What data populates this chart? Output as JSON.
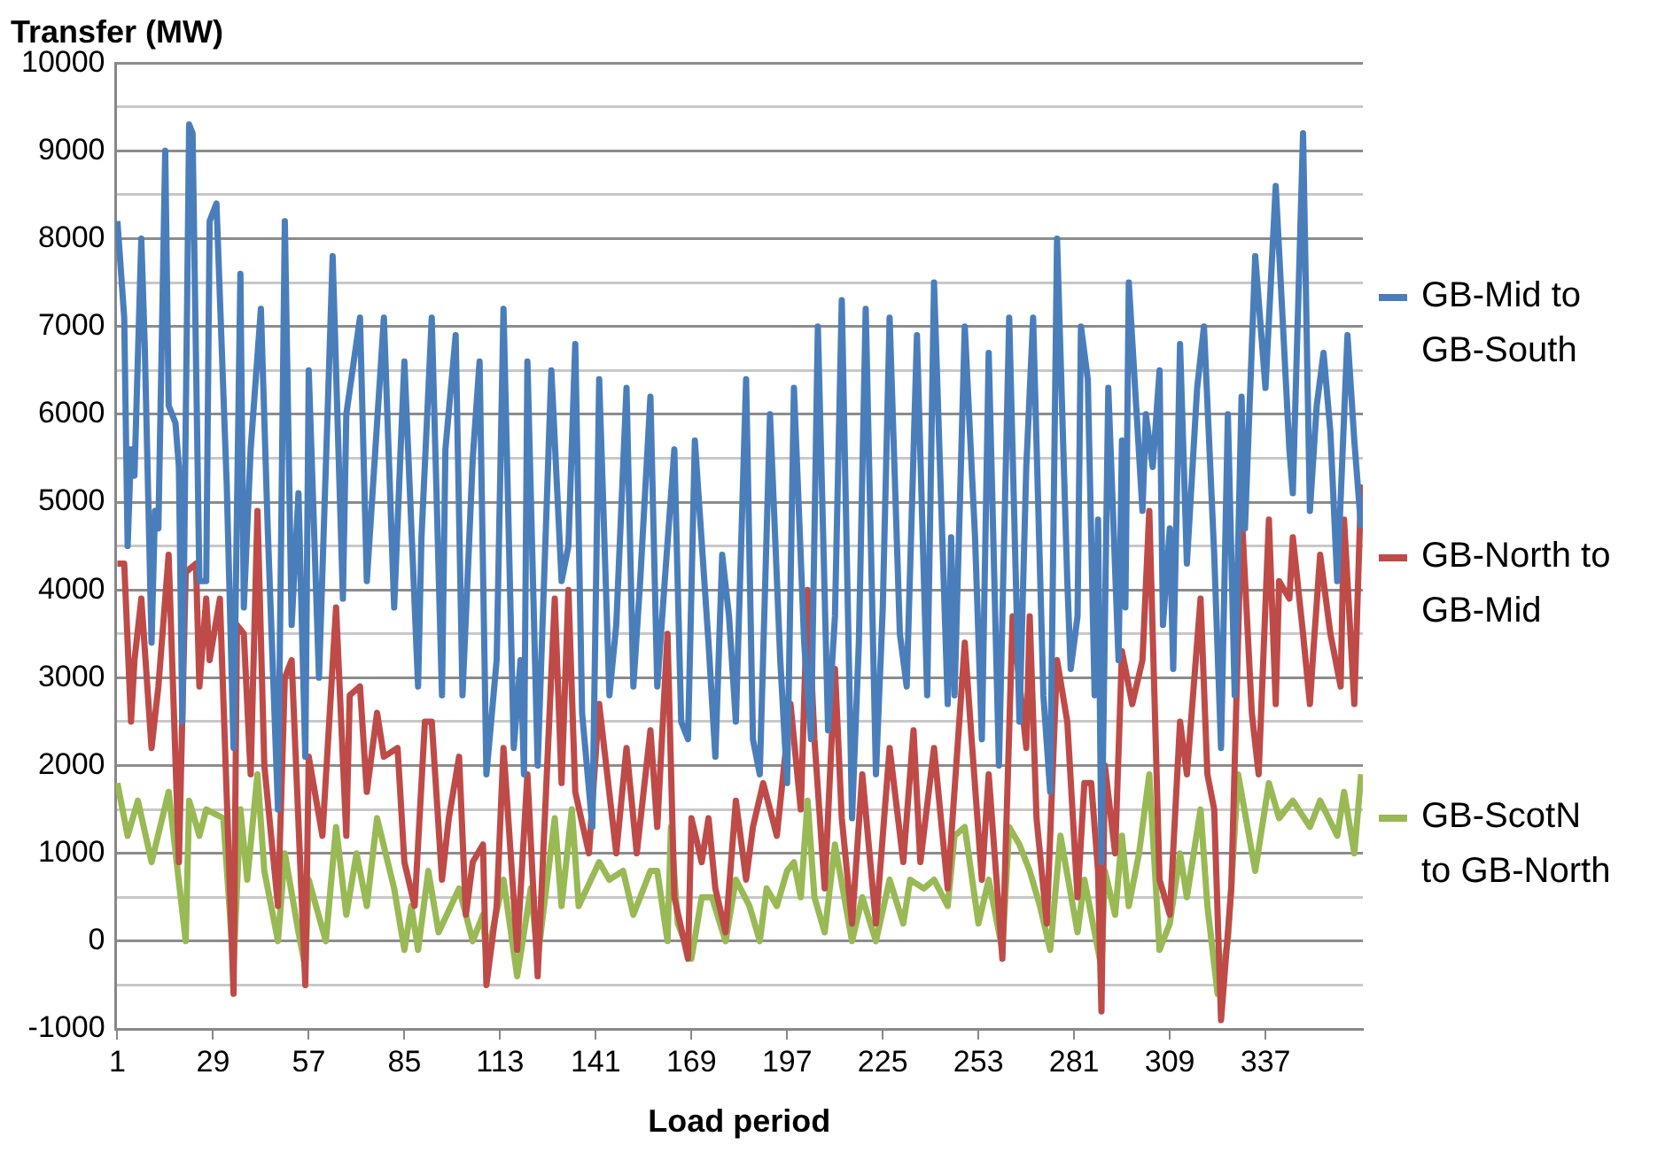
{
  "chart_data": {
    "type": "line",
    "ylabel": "Transfer (MW)",
    "xlabel": "Load period",
    "xlim": [
      0.5,
      365.5
    ],
    "xticks": [
      1,
      29,
      57,
      85,
      113,
      141,
      169,
      197,
      225,
      253,
      281,
      309,
      337
    ],
    "ylim": [
      -1000,
      10000
    ],
    "yticks": [
      -1000,
      {
        "value": -500,
        "label": null
      },
      0,
      {
        "value": 500,
        "label": null
      },
      1000,
      {
        "value": 1500,
        "label": null
      },
      2000,
      {
        "value": 2500,
        "label": null
      },
      3000,
      {
        "value": 3500,
        "label": null
      },
      4000,
      {
        "value": 4500,
        "label": null
      },
      5000,
      {
        "value": 5500,
        "label": null
      },
      6000,
      {
        "value": 6500,
        "label": null
      },
      7000,
      {
        "value": 7500,
        "label": null
      },
      8000,
      {
        "value": 8500,
        "label": null
      },
      9000,
      {
        "value": 9500,
        "label": null
      },
      10000
    ],
    "grid": "y",
    "legend": "right",
    "marker": "none",
    "line_style": "solid",
    "series": [
      {
        "name": "GB-Mid to GB-South",
        "color": "#4a7ebb",
        "x": [
          1,
          3,
          4,
          5,
          6,
          8,
          9,
          11,
          12,
          13,
          15,
          16,
          18,
          19,
          20,
          22,
          23,
          25,
          27,
          28,
          30,
          33,
          35,
          37,
          38,
          40,
          43,
          45,
          48,
          50,
          52,
          54,
          56,
          57,
          60,
          64,
          67,
          68,
          72,
          74,
          79,
          82,
          84,
          85,
          89,
          90,
          93,
          96,
          97,
          100,
          102,
          105,
          107,
          109,
          112,
          114,
          117,
          119,
          120,
          121,
          124,
          128,
          131,
          133,
          135,
          137,
          140,
          142,
          145,
          147,
          150,
          152,
          154,
          157,
          159,
          161,
          164,
          166,
          168,
          170,
          174,
          176,
          178,
          180,
          182,
          185,
          187,
          189,
          192,
          195,
          197,
          199,
          202,
          204,
          206,
          209,
          211,
          213,
          216,
          218,
          220,
          223,
          225,
          227,
          230,
          232,
          235,
          238,
          240,
          244,
          245,
          246,
          249,
          252,
          254,
          256,
          259,
          262,
          265,
          267,
          269,
          272,
          274,
          276,
          279,
          280,
          282,
          283,
          285,
          287,
          288,
          289,
          291,
          294,
          295,
          296,
          297,
          301,
          302,
          304,
          306,
          307,
          309,
          310,
          312,
          314,
          317,
          319,
          322,
          324,
          326,
          328,
          330,
          331,
          334,
          337,
          340,
          344,
          345,
          348,
          350,
          352,
          354,
          356,
          358,
          361,
          363,
          365
        ],
        "values": [
          8200,
          7100,
          4500,
          5600,
          5300,
          8000,
          6800,
          3400,
          4900,
          4700,
          9000,
          6100,
          5900,
          5400,
          2500,
          9300,
          9200,
          4100,
          4100,
          8200,
          8400,
          5200,
          2200,
          7600,
          3800,
          5600,
          7200,
          4700,
          1500,
          8200,
          3600,
          5100,
          2100,
          6500,
          3000,
          7800,
          3900,
          6000,
          7100,
          4100,
          7100,
          3800,
          5700,
          6600,
          2900,
          4600,
          7100,
          2800,
          5600,
          6900,
          2800,
          5500,
          6600,
          1900,
          3200,
          7200,
          2200,
          3200,
          1900,
          6600,
          2000,
          6500,
          4100,
          4500,
          6800,
          2600,
          1300,
          6400,
          2800,
          3600,
          6300,
          2900,
          4100,
          6200,
          2900,
          4000,
          5600,
          2500,
          2300,
          5700,
          3400,
          2100,
          4400,
          3700,
          2500,
          6400,
          2300,
          1900,
          6000,
          3200,
          1800,
          6300,
          3400,
          2300,
          7000,
          2400,
          3700,
          7300,
          1400,
          3400,
          7200,
          1900,
          3800,
          7100,
          3500,
          2900,
          6900,
          2800,
          7500,
          2700,
          4600,
          2800,
          7000,
          4600,
          2300,
          6700,
          2000,
          7100,
          2500,
          5400,
          7100,
          2800,
          1700,
          8000,
          4100,
          3100,
          3700,
          7000,
          6400,
          2800,
          4800,
          900,
          6300,
          3200,
          5700,
          3800,
          7500,
          4900,
          6000,
          5400,
          6500,
          3600,
          4700,
          3100,
          6800,
          4300,
          6300,
          7000,
          4400,
          2200,
          6000,
          2800,
          6200,
          4700,
          7800,
          6300,
          8600,
          5600,
          5100,
          9200,
          4900,
          6100,
          6700,
          5800,
          4100,
          6900,
          5700,
          4700
        ]
      },
      {
        "name": "GB-North to GB-Mid",
        "color": "#be4b48",
        "x": [
          1,
          3,
          5,
          6,
          8,
          11,
          13,
          16,
          19,
          21,
          24,
          25,
          27,
          28,
          31,
          35,
          36,
          38,
          40,
          42,
          44,
          48,
          50,
          52,
          56,
          57,
          61,
          65,
          68,
          69,
          72,
          74,
          77,
          79,
          83,
          85,
          88,
          91,
          93,
          96,
          98,
          101,
          103,
          105,
          108,
          109,
          112,
          114,
          118,
          121,
          124,
          129,
          131,
          133,
          135,
          139,
          142,
          147,
          150,
          153,
          157,
          159,
          162,
          164,
          168,
          169,
          172,
          174,
          176,
          179,
          182,
          185,
          187,
          190,
          194,
          198,
          201,
          203,
          205,
          208,
          211,
          213,
          216,
          219,
          223,
          227,
          231,
          234,
          236,
          240,
          244,
          249,
          251,
          254,
          256,
          260,
          263,
          267,
          268,
          270,
          273,
          276,
          279,
          282,
          284,
          286,
          288,
          289,
          290,
          293,
          295,
          298,
          301,
          303,
          306,
          309,
          312,
          314,
          318,
          320,
          322,
          324,
          327,
          330,
          333,
          335,
          338,
          340,
          341,
          344,
          345,
          348,
          350,
          351,
          353,
          356,
          359,
          360,
          363,
          365
        ],
        "values": [
          4300,
          4300,
          2500,
          3200,
          3900,
          2200,
          2900,
          4400,
          900,
          4200,
          4300,
          2900,
          3900,
          3200,
          3900,
          -600,
          3600,
          3500,
          1900,
          4900,
          2000,
          400,
          3000,
          3200,
          -500,
          2100,
          1200,
          3800,
          1200,
          2800,
          2900,
          1700,
          2600,
          2100,
          2200,
          900,
          400,
          2500,
          2500,
          700,
          1400,
          2100,
          300,
          900,
          1100,
          -500,
          400,
          2200,
          -100,
          1900,
          -400,
          3900,
          1800,
          4000,
          1700,
          1000,
          2700,
          1000,
          2200,
          1000,
          2400,
          1300,
          3500,
          500,
          -200,
          1400,
          900,
          1400,
          600,
          100,
          1600,
          700,
          1300,
          1800,
          1200,
          2700,
          1500,
          4000,
          2300,
          600,
          3100,
          1400,
          200,
          1900,
          200,
          2200,
          900,
          2400,
          900,
          2200,
          600,
          3400,
          2300,
          700,
          1900,
          -200,
          3700,
          2200,
          3700,
          1400,
          200,
          3200,
          2500,
          500,
          1800,
          1800,
          800,
          -800,
          2000,
          1000,
          3300,
          2700,
          3200,
          4900,
          700,
          300,
          2500,
          1900,
          3900,
          1900,
          1500,
          -900,
          600,
          4900,
          2600,
          1900,
          4800,
          2700,
          4100,
          3900,
          4600,
          3500,
          2700,
          3300,
          4400,
          3500,
          2900,
          4800,
          2700,
          5200
        ]
      },
      {
        "name": "GB-ScotN to GB-North",
        "color": "#98b954",
        "x": [
          1,
          4,
          7,
          11,
          16,
          21,
          22,
          25,
          27,
          32,
          35,
          37,
          39,
          42,
          44,
          48,
          50,
          54,
          56,
          57,
          62,
          65,
          68,
          71,
          74,
          77,
          82,
          85,
          87,
          89,
          92,
          95,
          101,
          105,
          108,
          109,
          114,
          118,
          122,
          124,
          129,
          131,
          134,
          136,
          142,
          145,
          149,
          152,
          157,
          159,
          162,
          163,
          165,
          169,
          172,
          175,
          179,
          182,
          186,
          189,
          191,
          194,
          197,
          199,
          201,
          203,
          205,
          208,
          211,
          216,
          219,
          223,
          227,
          231,
          233,
          237,
          240,
          244,
          246,
          249,
          253,
          256,
          260,
          262,
          265,
          268,
          271,
          274,
          277,
          282,
          284,
          289,
          290,
          293,
          295,
          297,
          300,
          303,
          306,
          309,
          312,
          314,
          318,
          320,
          323,
          326,
          329,
          334,
          338,
          341,
          345,
          350,
          353,
          358,
          360,
          363,
          365
        ],
        "values": [
          1800,
          1200,
          1600,
          900,
          1700,
          0,
          1600,
          1200,
          1500,
          1400,
          -300,
          1500,
          700,
          1900,
          800,
          0,
          1000,
          100,
          -300,
          700,
          0,
          1300,
          300,
          1000,
          400,
          1400,
          600,
          -100,
          400,
          -100,
          800,
          100,
          600,
          0,
          300,
          -200,
          700,
          -400,
          600,
          -200,
          1400,
          400,
          1500,
          400,
          900,
          700,
          800,
          300,
          800,
          800,
          0,
          1300,
          200,
          -200,
          500,
          500,
          0,
          700,
          400,
          0,
          600,
          400,
          800,
          900,
          500,
          1600,
          500,
          100,
          1100,
          0,
          500,
          0,
          700,
          200,
          700,
          600,
          700,
          400,
          1200,
          1300,
          200,
          700,
          -100,
          1300,
          1100,
          800,
          400,
          -100,
          1200,
          100,
          700,
          -300,
          800,
          300,
          1200,
          400,
          1000,
          1900,
          -100,
          200,
          1000,
          500,
          1500,
          400,
          -600,
          0,
          1900,
          800,
          1800,
          1400,
          1600,
          1300,
          1600,
          1200,
          1700,
          1000,
          1900
        ]
      }
    ]
  }
}
